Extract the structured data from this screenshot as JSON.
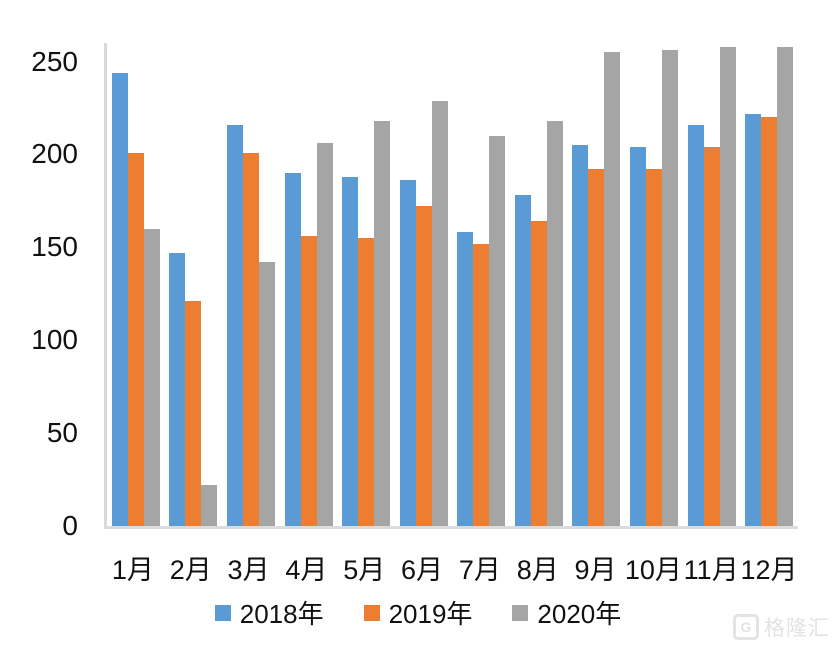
{
  "watermark": {
    "logo_letter": "G",
    "text": "格隆汇"
  },
  "chart_data": {
    "type": "bar",
    "title": "",
    "xlabel": "",
    "ylabel": "",
    "categories": [
      "1月",
      "2月",
      "3月",
      "4月",
      "5月",
      "6月",
      "7月",
      "8月",
      "9月",
      "10月",
      "11月",
      "12月"
    ],
    "series": [
      {
        "name": "2018年",
        "color": "#5B9BD5",
        "values": [
          244,
          147,
          216,
          190,
          188,
          186,
          158,
          178,
          205,
          204,
          216,
          222
        ]
      },
      {
        "name": "2019年",
        "color": "#ED7D31",
        "values": [
          201,
          121,
          201,
          156,
          155,
          172,
          152,
          164,
          192,
          192,
          204,
          220
        ]
      },
      {
        "name": "2020年",
        "color": "#A5A5A5",
        "values": [
          160,
          22,
          142,
          206,
          218,
          229,
          210,
          218,
          255,
          256,
          258,
          258
        ]
      }
    ],
    "y_ticks": [
      0,
      50,
      100,
      150,
      200,
      250
    ],
    "ylim": [
      0,
      260
    ],
    "grid": false,
    "legend_position": "bottom",
    "axis_color": "#d9d9d9"
  }
}
